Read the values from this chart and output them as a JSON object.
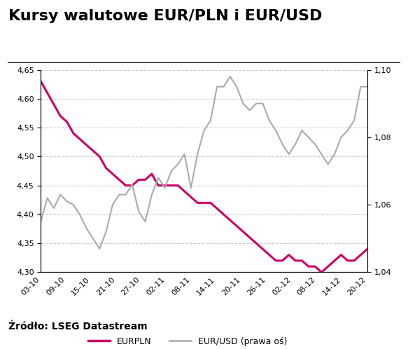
{
  "title": "Kursy walutowe EUR/PLN i EUR/USD",
  "source": "Źródło: LSEG Datastream",
  "x_labels": [
    "03-10",
    "09-10",
    "15-10",
    "21-10",
    "27-10",
    "02-11",
    "08-11",
    "14-11",
    "20-11",
    "26-11",
    "02-12",
    "08-12",
    "14-12",
    "20-12"
  ],
  "eurpln": [
    4.63,
    4.6,
    4.57,
    4.53,
    4.52,
    4.5,
    4.47,
    4.48,
    4.45,
    4.44,
    4.45,
    4.46,
    4.45,
    4.45,
    4.44,
    4.43,
    4.42,
    4.45,
    4.45,
    4.45,
    4.43,
    4.42,
    4.41,
    4.42,
    4.38,
    4.37,
    4.36,
    4.37,
    4.35,
    4.34,
    4.37,
    4.36,
    4.35,
    4.34,
    4.33,
    4.32,
    4.31,
    4.32,
    4.33,
    4.32,
    4.31,
    4.32,
    4.31,
    4.3,
    4.32,
    4.33,
    4.34,
    4.33,
    4.32,
    4.33,
    4.34
  ],
  "eurusd": [
    1.055,
    1.062,
    1.059,
    1.063,
    1.061,
    1.06,
    1.057,
    1.053,
    1.05,
    1.047,
    1.052,
    1.06,
    1.063,
    1.063,
    1.066,
    1.058,
    1.055,
    1.063,
    1.068,
    1.065,
    1.07,
    1.072,
    1.075,
    1.065,
    1.075,
    1.082,
    1.085,
    1.095,
    1.095,
    1.098,
    1.095,
    1.09,
    1.088,
    1.09,
    1.09,
    1.085,
    1.082,
    1.078,
    1.075,
    1.078,
    1.082,
    1.08,
    1.078,
    1.075,
    1.072,
    1.075,
    1.08,
    1.082,
    1.085,
    1.095,
    1.095
  ],
  "eurpln_color": "#CC0066",
  "eurusd_color": "#AAAAAA",
  "left_ylim": [
    4.3,
    4.65
  ],
  "right_ylim": [
    1.04,
    1.1
  ],
  "left_yticks": [
    4.3,
    4.35,
    4.4,
    4.45,
    4.5,
    4.55,
    4.6,
    4.65
  ],
  "right_yticks": [
    1.04,
    1.06,
    1.08,
    1.1
  ],
  "background_color": "#FFFFFF",
  "title_fontsize": 16,
  "legend_eurpln": "EURPLN",
  "legend_eurusd": "EUR/USD (prawa oś)"
}
